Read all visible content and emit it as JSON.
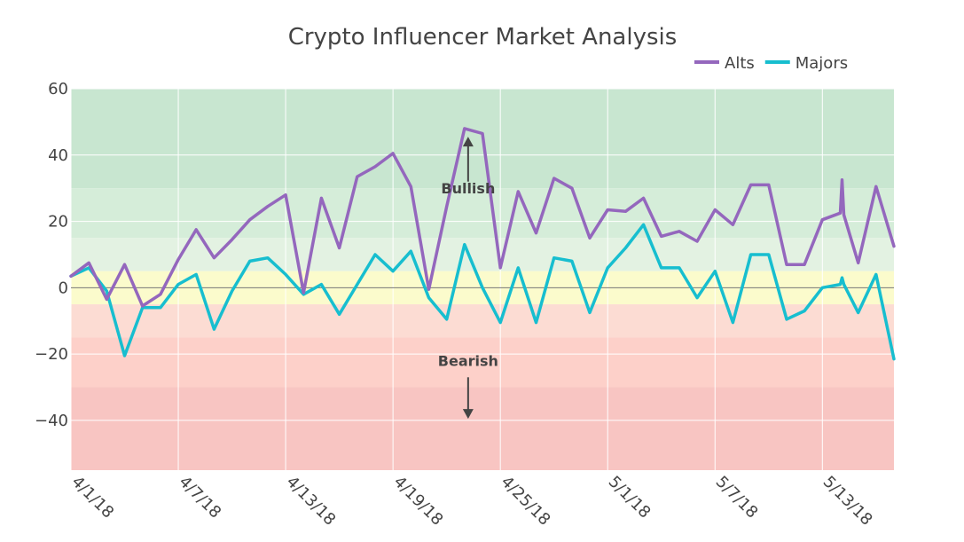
{
  "chart_data": {
    "type": "line",
    "title": "Crypto Influencer Market Analysis",
    "xlabel": "",
    "ylabel": "",
    "ylim": [
      -55,
      60
    ],
    "yticks": [
      -40,
      -20,
      0,
      20,
      40,
      60
    ],
    "ytick_labels": [
      "−40",
      "−20",
      "0",
      "20",
      "40",
      "60"
    ],
    "x_start_day": 0,
    "x_end_day": 46,
    "xticks": [
      {
        "day": 0,
        "label": "4/1/18"
      },
      {
        "day": 6,
        "label": "4/7/18"
      },
      {
        "day": 12,
        "label": "4/13/18"
      },
      {
        "day": 18,
        "label": "4/19/18"
      },
      {
        "day": 24,
        "label": "4/25/18"
      },
      {
        "day": 30,
        "label": "5/1/18"
      },
      {
        "day": 36,
        "label": "5/7/18"
      },
      {
        "day": 42,
        "label": "5/13/18"
      }
    ],
    "bands": [
      {
        "from": 30,
        "to": 60,
        "color": "#c8e6d0"
      },
      {
        "from": 15,
        "to": 30,
        "color": "#d5edd9"
      },
      {
        "from": 5,
        "to": 15,
        "color": "#e3f2e2"
      },
      {
        "from": -5,
        "to": 5,
        "color": "#fbfbcc"
      },
      {
        "from": -15,
        "to": -5,
        "color": "#fcdcd3"
      },
      {
        "from": -30,
        "to": -15,
        "color": "#fdd0c9"
      },
      {
        "from": -55,
        "to": -30,
        "color": "#f8c5c2"
      }
    ],
    "legend_position": "top-right",
    "series": [
      {
        "name": "Alts",
        "color": "#9467bd",
        "points": [
          [
            0,
            3.5
          ],
          [
            1,
            7.5
          ],
          [
            2,
            -3.5
          ],
          [
            3,
            7
          ],
          [
            4,
            -5.5
          ],
          [
            5,
            -2
          ],
          [
            6,
            8.5
          ],
          [
            7,
            17.5
          ],
          [
            8,
            9
          ],
          [
            9,
            14.5
          ],
          [
            10,
            20.5
          ],
          [
            11,
            24.5
          ],
          [
            12,
            28
          ],
          [
            13,
            -1.5
          ],
          [
            14,
            27
          ],
          [
            15,
            12
          ],
          [
            16,
            33.5
          ],
          [
            17,
            36.5
          ],
          [
            18,
            40.5
          ],
          [
            19,
            30.5
          ],
          [
            20,
            -0.5
          ],
          [
            21,
            24.5
          ],
          [
            22,
            48
          ],
          [
            23,
            46.5
          ],
          [
            24,
            6
          ],
          [
            25,
            29
          ],
          [
            26,
            16.5
          ],
          [
            27,
            33
          ],
          [
            28,
            30
          ],
          [
            29,
            15
          ],
          [
            30,
            23.5
          ],
          [
            31,
            23
          ],
          [
            32,
            27
          ],
          [
            33,
            15.5
          ],
          [
            34,
            17
          ],
          [
            35,
            14
          ],
          [
            36,
            23.5
          ],
          [
            37,
            19
          ],
          [
            38,
            31
          ],
          [
            39,
            31
          ],
          [
            40,
            7
          ],
          [
            41,
            7
          ],
          [
            42,
            20.5
          ],
          [
            43,
            22.5
          ],
          [
            43.1,
            32.5
          ],
          [
            43.2,
            22
          ],
          [
            44,
            7.5
          ],
          [
            45,
            30.5
          ],
          [
            46,
            12.5
          ]
        ]
      },
      {
        "name": "Majors",
        "color": "#17becf",
        "points": [
          [
            0,
            3.5
          ],
          [
            1,
            6
          ],
          [
            2,
            -1
          ],
          [
            3,
            -20.5
          ],
          [
            4,
            -6
          ],
          [
            5,
            -6
          ],
          [
            6,
            1
          ],
          [
            7,
            4
          ],
          [
            8,
            -12.5
          ],
          [
            9,
            -1
          ],
          [
            10,
            8
          ],
          [
            11,
            9
          ],
          [
            12,
            4
          ],
          [
            13,
            -2
          ],
          [
            14,
            1
          ],
          [
            15,
            -8
          ],
          [
            16,
            1
          ],
          [
            17,
            10
          ],
          [
            18,
            5
          ],
          [
            19,
            11
          ],
          [
            20,
            -3
          ],
          [
            21,
            -9.5
          ],
          [
            22,
            13
          ],
          [
            23,
            0
          ],
          [
            24,
            -10.5
          ],
          [
            25,
            6
          ],
          [
            26,
            -10.5
          ],
          [
            27,
            9
          ],
          [
            28,
            8
          ],
          [
            29,
            -7.5
          ],
          [
            30,
            6
          ],
          [
            31,
            12
          ],
          [
            32,
            19
          ],
          [
            33,
            6
          ],
          [
            34,
            6
          ],
          [
            35,
            -3
          ],
          [
            36,
            5
          ],
          [
            37,
            -10.5
          ],
          [
            38,
            10
          ],
          [
            39,
            10
          ],
          [
            40,
            -9.5
          ],
          [
            41,
            -7
          ],
          [
            42,
            0
          ],
          [
            43,
            1
          ],
          [
            43.1,
            3
          ],
          [
            43.2,
            1
          ],
          [
            44,
            -7.5
          ],
          [
            45,
            4
          ],
          [
            46,
            -21.5
          ]
        ]
      }
    ],
    "annotations": [
      {
        "text": "Bullish",
        "label_y": 30,
        "arrow_from": 32,
        "arrow_to": 45,
        "x_day": 22.2
      },
      {
        "text": "Bearish",
        "label_y": -22,
        "arrow_from": -27,
        "arrow_to": -39,
        "x_day": 22.2
      }
    ]
  }
}
